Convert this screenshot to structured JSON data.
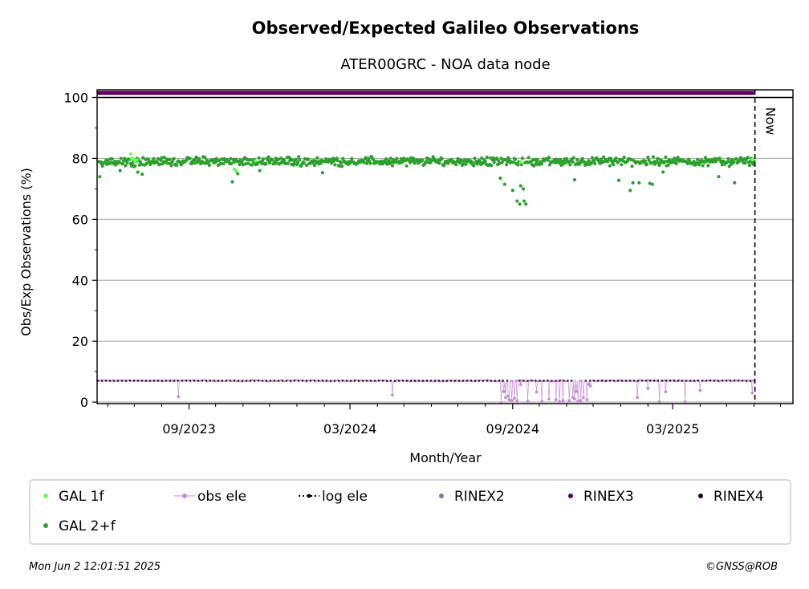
{
  "chart_data": {
    "type": "scatter",
    "title": "Observed/Expected Galileo Observations",
    "subtitle": "ATER00GRC - NOA data node",
    "xlabel": "Month/Year",
    "ylabel": "Obs/Exp Observations (%)",
    "xlim": [
      "2023-05-20",
      "2025-07-15"
    ],
    "ylim": [
      -0.5,
      102.5
    ],
    "grid": "y",
    "y_ticks": [
      0,
      20,
      40,
      60,
      80,
      100
    ],
    "x_ticks": [
      {
        "date": "2023-09-01",
        "label": "09/2023"
      },
      {
        "date": "2024-03-01",
        "label": "03/2024"
      },
      {
        "date": "2024-09-01",
        "label": "09/2024"
      },
      {
        "date": "2025-03-01",
        "label": "03/2025"
      }
    ],
    "now": {
      "date": "2025-06-02",
      "label": "Now"
    },
    "series": [
      {
        "name": "GAL 1f",
        "color": "#66ff55",
        "marker": "dot",
        "points": [
          [
            "2023-06-27",
            81.5
          ],
          [
            "2023-06-28",
            80.0
          ],
          [
            "2023-06-30",
            79.8
          ],
          [
            "2023-07-02",
            79.0
          ],
          [
            "2023-07-04",
            79.5
          ],
          [
            "2023-10-22",
            76.5
          ],
          [
            "2023-10-24",
            75.8
          ],
          [
            "2023-11-15",
            79.2
          ],
          [
            "2024-09-10",
            78.8
          ],
          [
            "2025-05-30",
            79.6
          ]
        ]
      },
      {
        "name": "GAL 2+f",
        "color": "#2ca02c",
        "marker": "dot",
        "baseline": 79,
        "range": [
          "2023-05-22",
          "2025-06-01"
        ],
        "outliers": [
          [
            "2023-05-23",
            74.0
          ],
          [
            "2023-05-26",
            77.5
          ],
          [
            "2023-06-15",
            76.0
          ],
          [
            "2023-07-05",
            75.5
          ],
          [
            "2023-07-10",
            74.8
          ],
          [
            "2023-10-20",
            72.3
          ],
          [
            "2023-10-26",
            75.0
          ],
          [
            "2023-11-20",
            76.0
          ],
          [
            "2024-01-30",
            75.3
          ],
          [
            "2024-08-18",
            73.5
          ],
          [
            "2024-08-23",
            71.5
          ],
          [
            "2024-09-01",
            69.5
          ],
          [
            "2024-09-06",
            66.0
          ],
          [
            "2024-09-09",
            65.0
          ],
          [
            "2024-09-10",
            71.0
          ],
          [
            "2024-09-13",
            70.0
          ],
          [
            "2024-09-14",
            66.0
          ],
          [
            "2024-09-16",
            65.0
          ],
          [
            "2024-11-10",
            73.0
          ],
          [
            "2024-12-30",
            72.8
          ],
          [
            "2025-01-12",
            69.5
          ],
          [
            "2025-01-15",
            72.0
          ],
          [
            "2025-01-22",
            72.0
          ],
          [
            "2025-02-03",
            71.8
          ],
          [
            "2025-02-06",
            71.5
          ],
          [
            "2025-02-18",
            75.5
          ],
          [
            "2025-04-22",
            74.0
          ],
          [
            "2025-05-10",
            72.0
          ]
        ]
      },
      {
        "name": "obs ele",
        "color": "#c58cd2",
        "marker": "dot-line",
        "baseline": 7,
        "range": [
          "2023-05-20",
          "2025-06-01"
        ],
        "dips": [
          [
            "2023-08-20",
            1.8
          ],
          [
            "2024-04-18",
            2.3
          ],
          [
            "2024-08-19",
            -0.2
          ],
          [
            "2024-08-22",
            3.5
          ],
          [
            "2024-08-24",
            1.5
          ],
          [
            "2024-08-27",
            2.0
          ],
          [
            "2024-08-28",
            0.8
          ],
          [
            "2024-08-31",
            0.5
          ],
          [
            "2024-09-03",
            1.2
          ],
          [
            "2024-09-06",
            0.4
          ],
          [
            "2024-09-10",
            5.8
          ],
          [
            "2024-09-18",
            0.3
          ],
          [
            "2024-09-28",
            3.3
          ],
          [
            "2024-10-04",
            0.3
          ],
          [
            "2024-10-12",
            1.0
          ],
          [
            "2024-10-20",
            0.8
          ],
          [
            "2024-10-24",
            0.2
          ],
          [
            "2024-10-28",
            0.5
          ],
          [
            "2024-11-04",
            0.5
          ],
          [
            "2024-11-08",
            1.5
          ],
          [
            "2024-11-10",
            1.0
          ],
          [
            "2024-11-12",
            3.5
          ],
          [
            "2024-11-14",
            0.4
          ],
          [
            "2024-11-17",
            0.5
          ],
          [
            "2024-11-20",
            1.5
          ],
          [
            "2024-11-24",
            0.8
          ],
          [
            "2024-11-26",
            5.8
          ],
          [
            "2024-11-28",
            5.3
          ],
          [
            "2025-01-20",
            1.5
          ],
          [
            "2025-02-01",
            4.5
          ],
          [
            "2025-02-14",
            0.1
          ],
          [
            "2025-02-21",
            3.4
          ],
          [
            "2025-03-15",
            0.1
          ],
          [
            "2025-04-01",
            3.8
          ],
          [
            "2025-05-30",
            3.0
          ]
        ]
      },
      {
        "name": "log ele",
        "color": "#000000",
        "marker": "dotted-line",
        "value": 7,
        "range": [
          "2023-05-20",
          "2025-06-01"
        ],
        "gaps": [
          [
            "2024-08-28",
            "2024-09-08"
          ],
          [
            "2024-11-11",
            "2024-11-22"
          ]
        ]
      },
      {
        "name": "RINEX2",
        "color": "#7b72b8",
        "marker": "dot",
        "points": []
      },
      {
        "name": "RINEX3",
        "color": "#5e0060",
        "marker": "dot",
        "value": 101.5,
        "range": [
          "2023-05-20",
          "2025-06-01"
        ]
      },
      {
        "name": "RINEX4",
        "color": "#25001e",
        "marker": "dot",
        "points": []
      }
    ],
    "legend": [
      "GAL 1f",
      "obs ele",
      "log ele",
      "RINEX2",
      "RINEX3",
      "RINEX4",
      "GAL 2+f"
    ]
  },
  "footer": {
    "timestamp": "Mon Jun  2 12:01:51 2025",
    "copyright": "©GNSS@ROB"
  }
}
